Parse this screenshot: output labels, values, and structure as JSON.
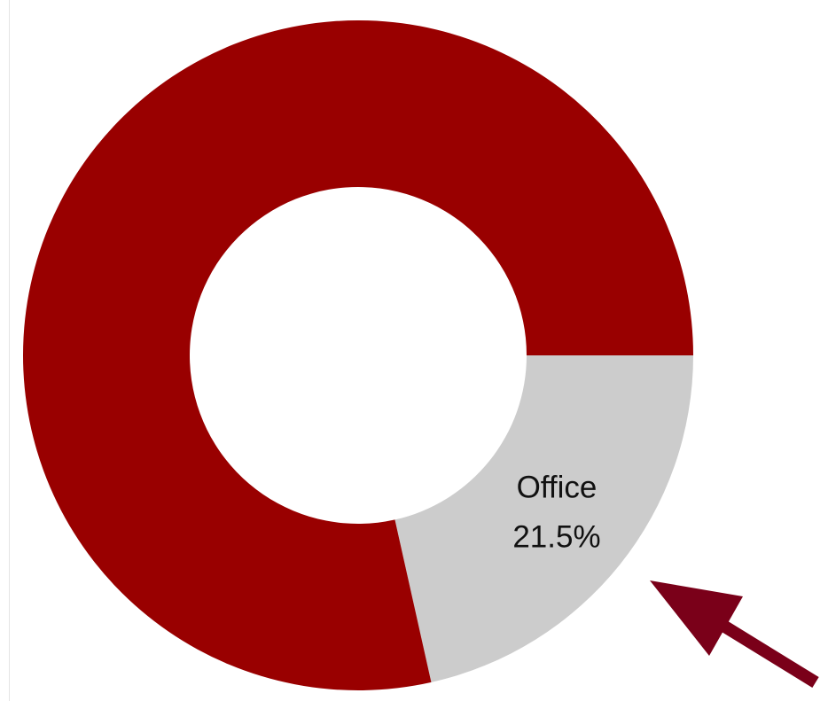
{
  "chart_data": {
    "type": "pie",
    "hole": true,
    "categories": [
      "Office",
      null
    ],
    "values": [
      21.5,
      78.5
    ],
    "value_labels": [
      "21.5%",
      null
    ],
    "colors": [
      "#cccccc",
      "#990000"
    ]
  }
}
